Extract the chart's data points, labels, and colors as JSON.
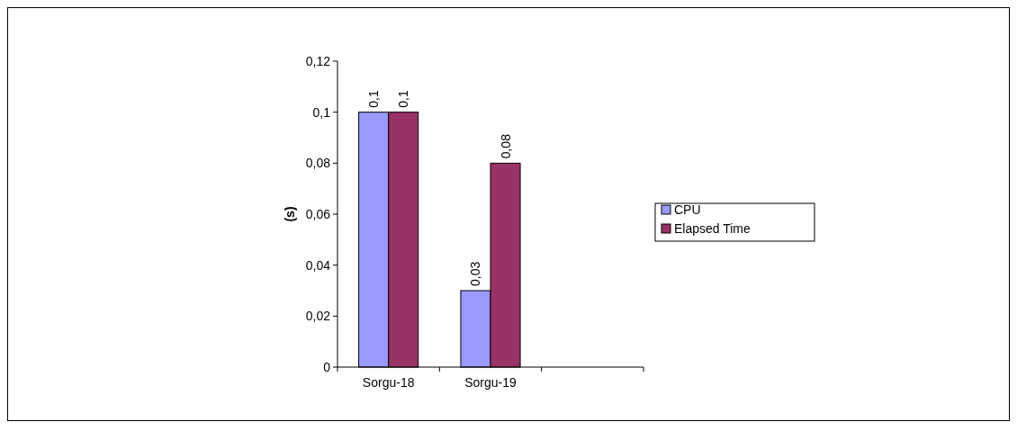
{
  "chart_data": {
    "type": "bar",
    "ylabel": "(s)",
    "categories": [
      "Sorgu-18",
      "Sorgu-19",
      null
    ],
    "series": [
      {
        "name": "CPU",
        "color": "#9999ff",
        "values": [
          0.1,
          0.03,
          null
        ],
        "value_labels": [
          "0,1",
          "0,03",
          null
        ]
      },
      {
        "name": "Elapsed Time",
        "color": "#993366",
        "values": [
          0.1,
          0.08,
          null
        ],
        "value_labels": [
          "0,1",
          "0,08",
          null
        ]
      }
    ],
    "ylim": [
      0,
      0.12
    ],
    "yticks": [
      0,
      {
        "value": 0.02,
        "label": "0,02"
      },
      {
        "value": 0.04,
        "label": "0,04"
      },
      {
        "value": 0.06,
        "label": "0,06"
      },
      {
        "value": 0.08,
        "label": "0,08"
      },
      {
        "value": 0.1,
        "label": "0,1"
      },
      {
        "value": 0.12,
        "label": "0,12"
      }
    ],
    "grid": false,
    "legend": "right"
  }
}
